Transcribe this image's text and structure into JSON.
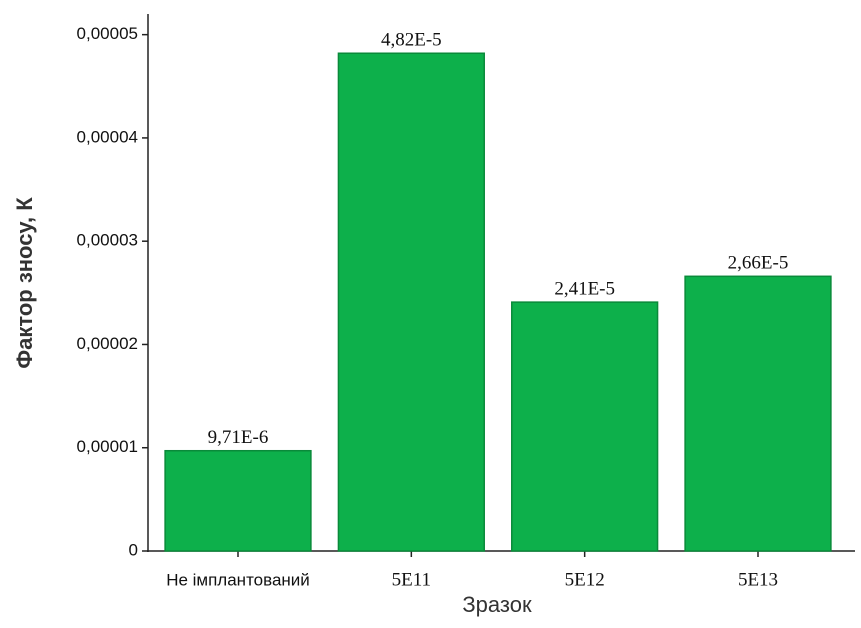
{
  "chart_data": {
    "type": "bar",
    "x_label": "Зразок",
    "y_label": "Фактор зносу, К",
    "categories": [
      "Не імплантований",
      "5E11",
      "5E12",
      "5E13"
    ],
    "values": [
      9.71e-06,
      4.82e-05,
      2.41e-05,
      2.66e-05
    ],
    "value_labels": [
      "9,71E-6",
      "4,82E-5",
      "2,41E-5",
      "2,66E-5"
    ],
    "color": "#0db04b",
    "ylim": [
      0,
      5.2e-05
    ],
    "yticks": [
      0,
      {
        "value": 1e-05,
        "label": "0,00001"
      },
      {
        "value": 2e-05,
        "label": "0,00002"
      },
      {
        "value": 3e-05,
        "label": "0,00003"
      },
      {
        "value": 4e-05,
        "label": "0,00004"
      },
      {
        "value": 5e-05,
        "label": "0,00005"
      }
    ],
    "grid": false
  }
}
